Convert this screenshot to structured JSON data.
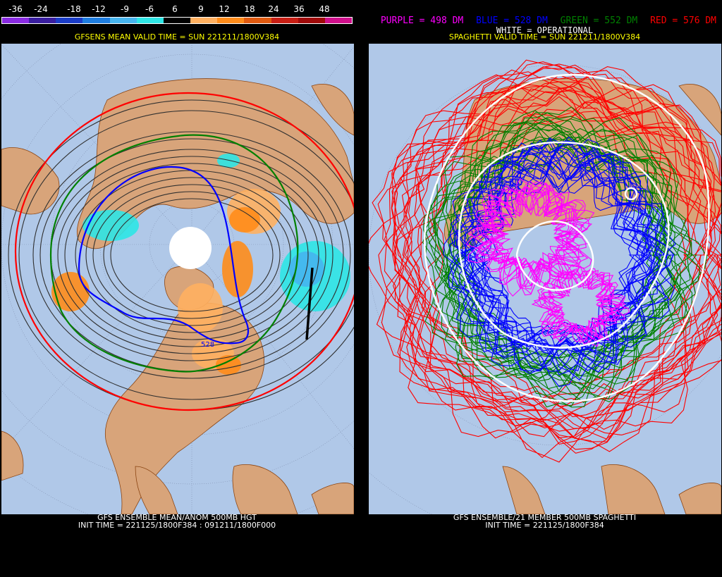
{
  "left_panel": {
    "colorbar": {
      "labels": [
        "-36",
        "-24",
        "-18",
        "-12",
        "-9",
        "-6",
        "6",
        "9",
        "12",
        "18",
        "24",
        "36",
        "48"
      ],
      "colors": [
        "#8a2be2",
        "#3a1ea0",
        "#1b3dc8",
        "#1e7de0",
        "#46b4ee",
        "#2ee6e6",
        "#000000",
        "#ffb060",
        "#ff8c1a",
        "#e05a10",
        "#c81e14",
        "#a00a0a",
        "#d0108c"
      ]
    },
    "header": "GFSENS MEAN VALID TIME = SUN 221211/1800V384",
    "contour_label": "528",
    "footer": {
      "line1": "GFS ENSEMBLE MEAN/ANOM 500MB HGT",
      "line2": "INIT TIME = 221125/1800F384 : 091211/1800F000"
    }
  },
  "right_panel": {
    "legend": {
      "purple": "PURPLE = 498 DM",
      "blue": "BLUE = 528 DM",
      "green": "GREEN = 552 DM",
      "red": "RED = 576 DM",
      "white": "WHITE = OPERATIONAL"
    },
    "header": "SPAGHETTI VALID TIME = SUN 221211/1800V384",
    "footer": {
      "line1": "GFS ENSEMBLE/21 MEMBER 500MB SPAGHETTI",
      "line2": "INIT TIME = 221125/1800F384"
    }
  },
  "colors": {
    "ocean": "#b0c8e8",
    "land": "#d8a47a",
    "header_yellow": "#ffff00",
    "purple": "#ff00ff",
    "blue": "#0000ff",
    "green": "#008000",
    "red": "#ff0000",
    "white": "#ffffff"
  }
}
